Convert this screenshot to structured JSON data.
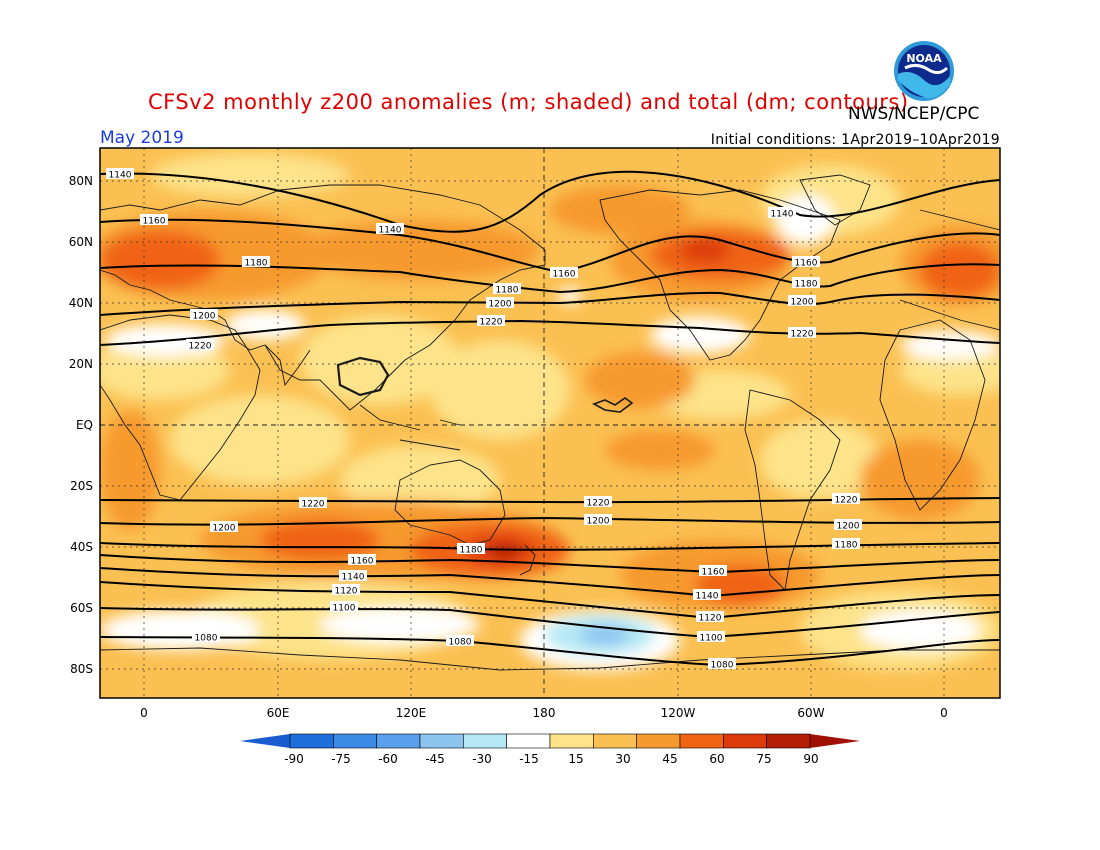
{
  "header": {
    "title": "CFSv2 monthly z200 anomalies (m; shaded) and total (dm; contours)",
    "agency": "NWS/NCEP/CPC",
    "month": "May 2019",
    "initial_conditions": "Initial conditions: 1Apr2019–10Apr2019",
    "logo_text": "NOAA"
  },
  "axes": {
    "lon_labels": [
      "0",
      "60E",
      "120E",
      "180",
      "120W",
      "60W",
      "0"
    ],
    "lat_labels": [
      "80N",
      "60N",
      "40N",
      "20N",
      "EQ",
      "20S",
      "40S",
      "60S",
      "80S"
    ]
  },
  "colorbar": {
    "labels": [
      "-90",
      "-75",
      "-60",
      "-45",
      "-30",
      "-15",
      "15",
      "30",
      "45",
      "60",
      "75",
      "90"
    ],
    "colors": [
      "#1e6fdc",
      "#3c8ae6",
      "#5aa0ec",
      "#8cc4f0",
      "#b4e8f4",
      "#ffffff",
      "#fde38a",
      "#fbc052",
      "#f79a2e",
      "#f06414",
      "#dc3a0a",
      "#b41e06"
    ],
    "low_arrow_color": "#1a5ccf",
    "high_arrow_color": "#a01004"
  },
  "contours": {
    "north": [
      {
        "label": "1140",
        "positions": [
          [
            120,
            174
          ],
          [
            390,
            229
          ],
          [
            782,
            213
          ]
        ]
      },
      {
        "label": "1160",
        "positions": [
          [
            154,
            220
          ],
          [
            564,
            273
          ],
          [
            806,
            262
          ]
        ]
      },
      {
        "label": "1180",
        "positions": [
          [
            256,
            262
          ],
          [
            507,
            289
          ],
          [
            806,
            283
          ]
        ]
      },
      {
        "label": "1200",
        "positions": [
          [
            204,
            315
          ],
          [
            500,
            303
          ],
          [
            802,
            301
          ]
        ]
      },
      {
        "label": "1220",
        "positions": [
          [
            200,
            345
          ],
          [
            491,
            321
          ],
          [
            802,
            333
          ]
        ]
      }
    ],
    "south": [
      {
        "label": "1220",
        "positions": [
          [
            313,
            503
          ],
          [
            598,
            502
          ],
          [
            846,
            499
          ]
        ]
      },
      {
        "label": "1200",
        "positions": [
          [
            224,
            527
          ],
          [
            598,
            520
          ],
          [
            848,
            525
          ]
        ]
      },
      {
        "label": "1180",
        "positions": [
          [
            471,
            549
          ],
          [
            846,
            544
          ]
        ]
      },
      {
        "label": "1160",
        "positions": [
          [
            362,
            560
          ],
          [
            713,
            571
          ]
        ]
      },
      {
        "label": "1140",
        "positions": [
          [
            353,
            576
          ],
          [
            707,
            595
          ]
        ]
      },
      {
        "label": "1120",
        "positions": [
          [
            346,
            590
          ],
          [
            710,
            617
          ]
        ]
      },
      {
        "label": "1100",
        "positions": [
          [
            344,
            607
          ],
          [
            711,
            637
          ]
        ]
      },
      {
        "label": "1080",
        "positions": [
          [
            206,
            637
          ],
          [
            460,
            641
          ],
          [
            722,
            664
          ]
        ]
      }
    ]
  }
}
